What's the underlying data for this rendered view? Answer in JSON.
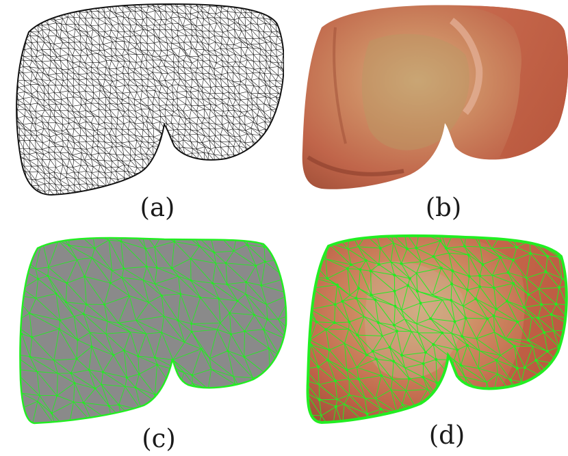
{
  "figure": {
    "panels": [
      {
        "id": "a",
        "caption": "(a)",
        "style": "wireframe-black"
      },
      {
        "id": "b",
        "caption": "(b)",
        "style": "textured-organ"
      },
      {
        "id": "c",
        "caption": "(c)",
        "style": "gray-fill-green-mesh"
      },
      {
        "id": "d",
        "caption": "(d)",
        "style": "texture-green-mesh"
      }
    ],
    "colors": {
      "wire_black": "#111111",
      "mesh_green": "#22ee22",
      "fill_gray": "#8a8a8a",
      "organ_base": "#c86a4e",
      "organ_dark": "#9e4d36",
      "organ_light": "#e7b48f",
      "organ_yellow": "#b8a060"
    }
  }
}
